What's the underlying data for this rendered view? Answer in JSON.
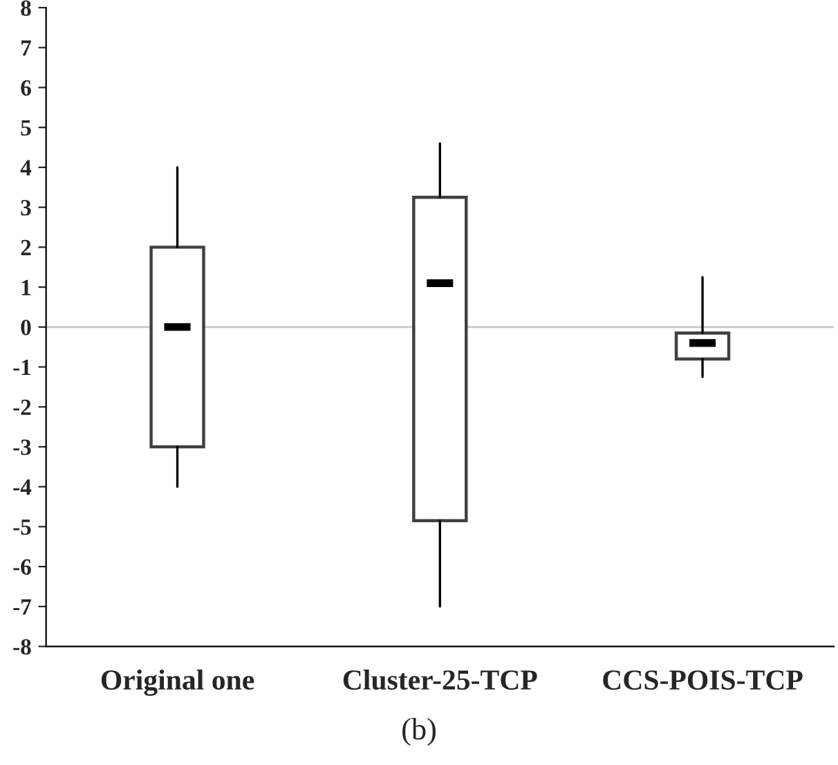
{
  "chart_data": {
    "type": "box",
    "categories": [
      "Original one",
      "Cluster-25-TCP",
      "CCS-POIS-TCP"
    ],
    "boxes": [
      {
        "low": -4,
        "q1": -3,
        "median": 0,
        "q3": 2,
        "high": 4
      },
      {
        "low": -7,
        "q1": -4.85,
        "median": 1.1,
        "q3": 3.25,
        "high": 4.6
      },
      {
        "low": -1.25,
        "q1": -0.8,
        "median": -0.4,
        "q3": -0.15,
        "high": 1.25
      }
    ],
    "color": "#404040",
    "ylim": [
      -8,
      8
    ],
    "yticks": [
      -8,
      -7,
      -6,
      -5,
      -4,
      -3,
      -2,
      -1,
      0,
      1,
      2,
      3,
      4,
      5,
      6,
      7,
      8
    ],
    "ref_lines": [
      {
        "axis": "y",
        "value": 0,
        "color": "#c8c8c8"
      }
    ],
    "grid": false,
    "legend": false,
    "annotations": [
      "(b)"
    ]
  }
}
